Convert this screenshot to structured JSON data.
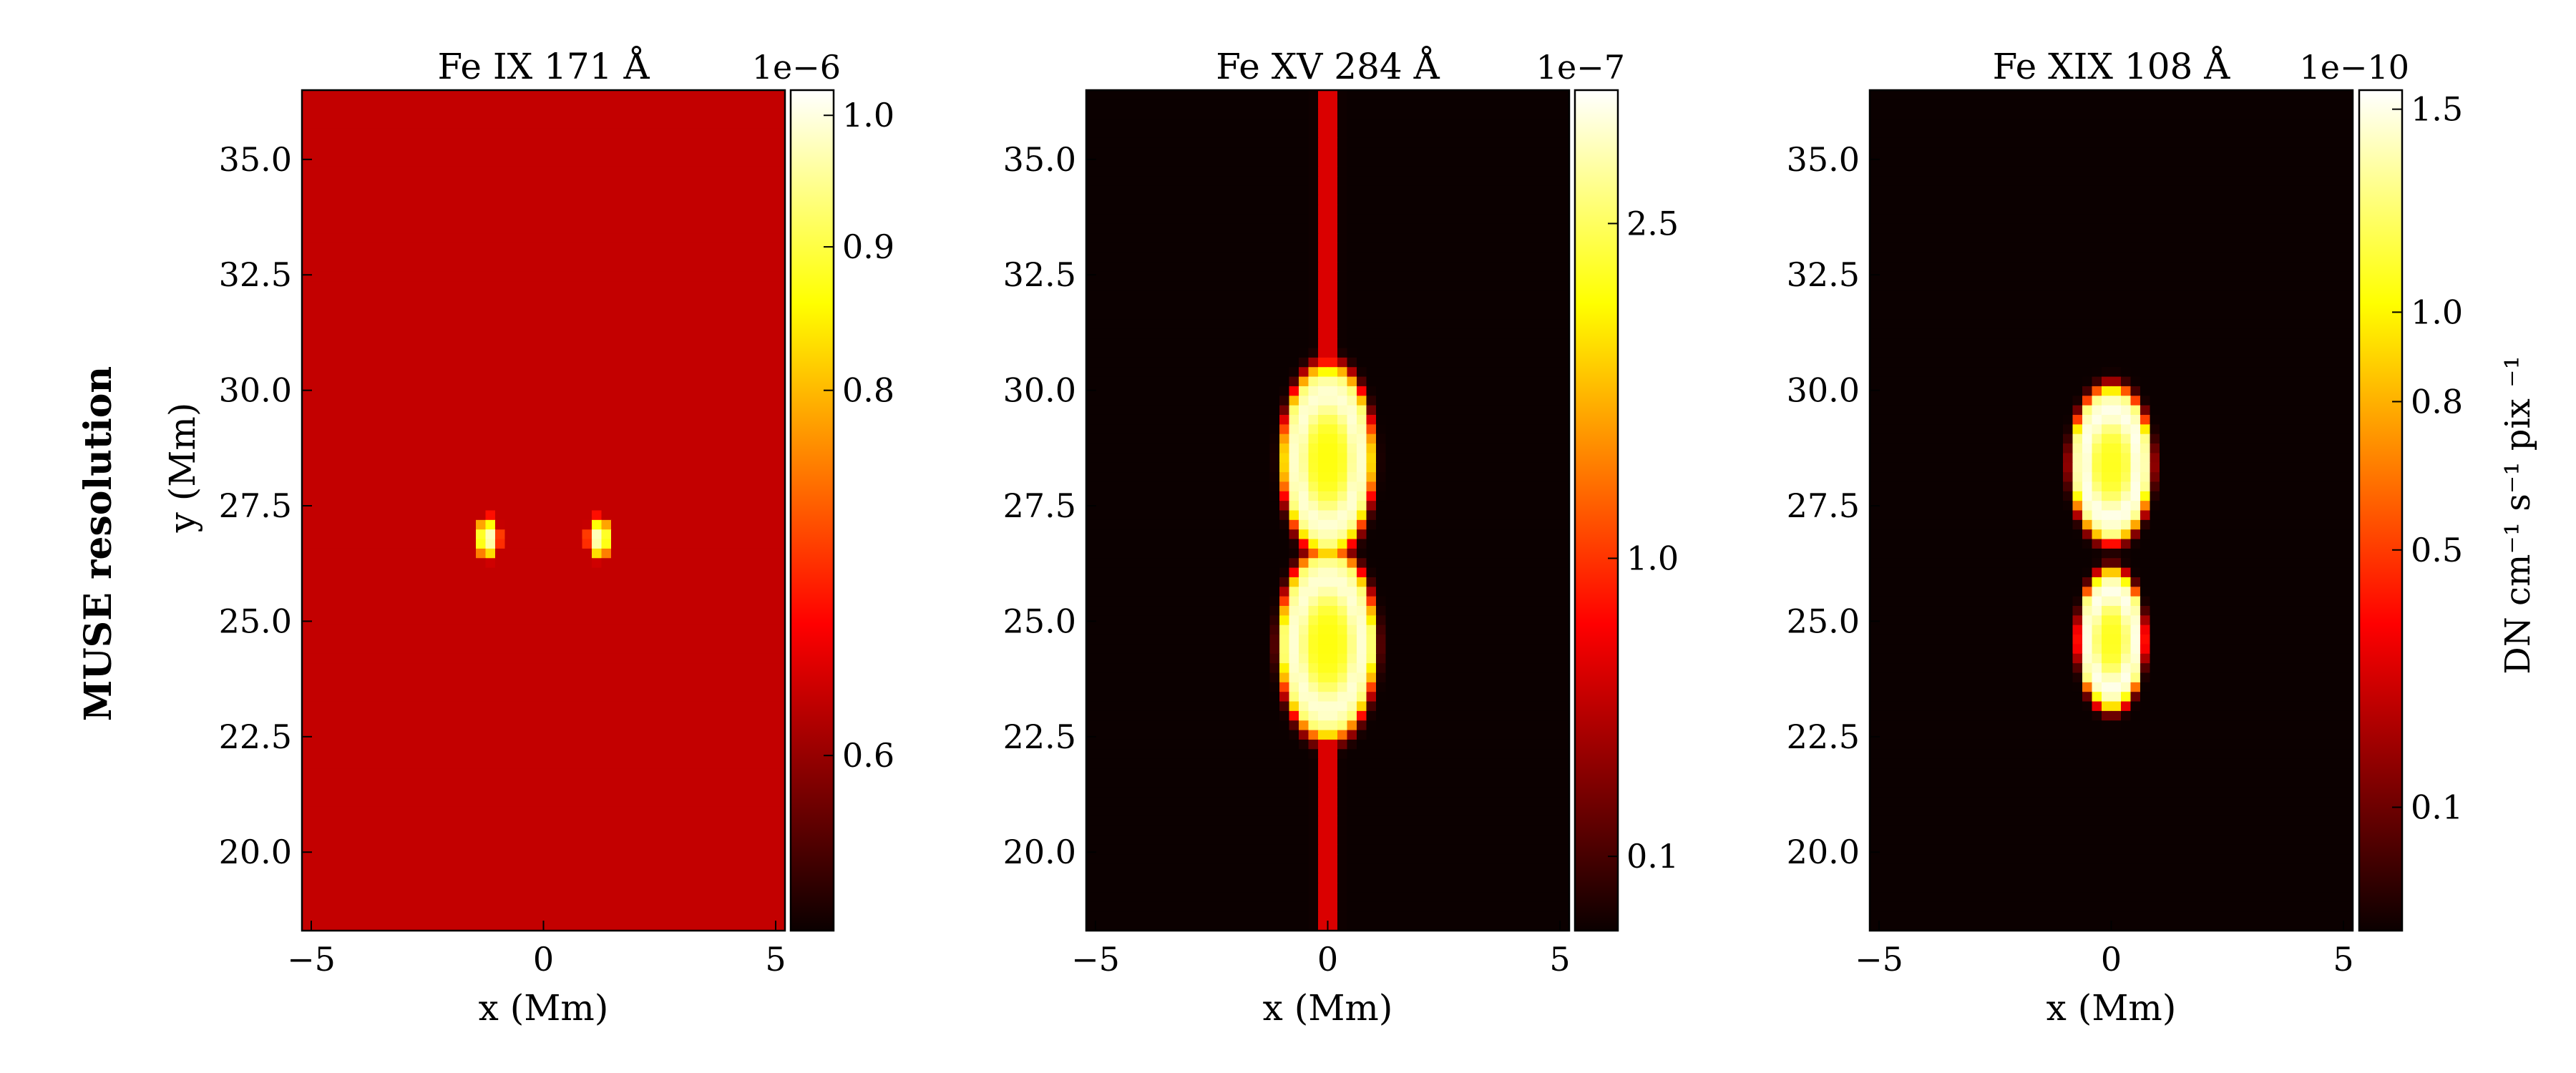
{
  "figure": {
    "row_label": "MUSE resolution",
    "row_label_color": "#ff0000",
    "colorbar_unit_label": "DN cm⁻¹ s⁻¹ pix ⁻¹"
  },
  "chart_data": [
    {
      "type": "heatmap",
      "title": "Fe IX 171 Å",
      "xlabel": "x (Mm)",
      "ylabel": "y (Mm)",
      "xlim": [
        -5.2,
        5.2
      ],
      "ylim": [
        18.3,
        36.5
      ],
      "xticks": [
        -5,
        0,
        5
      ],
      "yticks": [
        20.0,
        22.5,
        25.0,
        27.5,
        30.0,
        32.5,
        35.0
      ],
      "colormap": "hot",
      "colorbar": {
        "exponent_label": "1e−6",
        "range": [
          0.55,
          1.02
        ],
        "ticks": [
          0.6,
          0.8,
          0.9,
          1.0
        ],
        "scale": "nonlinear"
      },
      "features": [
        {
          "shape": "bright-blob",
          "x": -1.2,
          "y": 26.8,
          "sx": 0.45,
          "sy": 0.8,
          "peak": 1.0
        },
        {
          "shape": "bright-blob",
          "x": 1.2,
          "y": 26.8,
          "sx": 0.45,
          "sy": 0.8,
          "peak": 1.0
        }
      ],
      "background_level": 0.62
    },
    {
      "type": "heatmap",
      "title": "Fe XV 284 Å",
      "xlabel": "x (Mm)",
      "xlim": [
        -5.2,
        5.2
      ],
      "ylim": [
        18.3,
        36.5
      ],
      "xticks": [
        -5,
        0,
        5
      ],
      "yticks": [
        20.0,
        22.5,
        25.0,
        27.5,
        30.0,
        32.5,
        35.0
      ],
      "colormap": "hot",
      "colorbar": {
        "exponent_label": "1e−7",
        "range": [
          0.0,
          3.2
        ],
        "ticks": [
          0.1,
          1.0,
          2.5
        ],
        "scale": "nonlinear"
      },
      "features": [
        {
          "shape": "ellipse-ring",
          "x": 0.0,
          "y": 28.5,
          "sx": 0.9,
          "sy": 1.9,
          "peak": 3.0
        },
        {
          "shape": "ellipse-ring",
          "x": 0.0,
          "y": 24.5,
          "sx": 0.95,
          "sy": 1.9,
          "peak": 3.0
        },
        {
          "shape": "thin-column",
          "x": 0.0,
          "y_from": 18.3,
          "y_to": 36.5,
          "peak": 1.2
        }
      ],
      "background_level": 0.0
    },
    {
      "type": "heatmap",
      "title": "Fe XIX 108 Å",
      "xlabel": "x (Mm)",
      "xlim": [
        -5.2,
        5.2
      ],
      "ylim": [
        18.3,
        36.5
      ],
      "xticks": [
        -5,
        0,
        5
      ],
      "yticks": [
        20.0,
        22.5,
        25.0,
        27.5,
        30.0,
        32.5,
        35.0
      ],
      "colormap": "hot",
      "colorbar": {
        "exponent_label": "1e−10",
        "range": [
          0.0,
          1.55
        ],
        "ticks": [
          0.1,
          0.5,
          0.8,
          1.0,
          1.5
        ],
        "scale": "nonlinear"
      },
      "features": [
        {
          "shape": "ellipse-ring",
          "x": 0.0,
          "y": 28.4,
          "sx": 0.8,
          "sy": 1.55,
          "peak": 1.5
        },
        {
          "shape": "ellipse-ring",
          "x": 0.0,
          "y": 24.6,
          "sx": 0.65,
          "sy": 1.4,
          "peak": 1.5
        }
      ],
      "background_level": 0.0
    }
  ]
}
